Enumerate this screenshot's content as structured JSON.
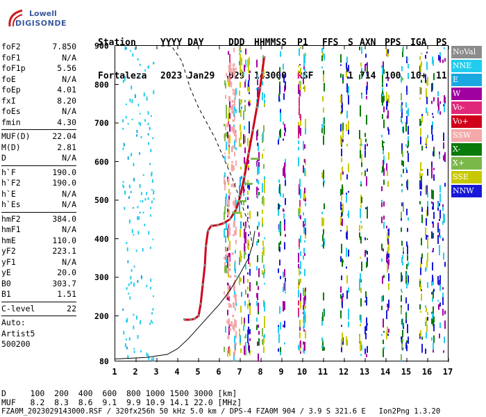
{
  "logo": {
    "line1": "Lowell",
    "line2": "DIGISONDE"
  },
  "header": {
    "row1": [
      "Station",
      "YYYY DAY",
      "DDD",
      "HHMMSS",
      "P1",
      "FFS",
      "S",
      "AXN",
      "PPS",
      "IGA",
      "PS"
    ],
    "row2": [
      "Fortaleza",
      "2023 Jan29",
      "029",
      "143000",
      "RSF",
      "1",
      "714",
      "100",
      "10+",
      "11"
    ]
  },
  "params": {
    "group1": [
      {
        "k": "foF2",
        "v": "7.850"
      },
      {
        "k": "foF1",
        "v": "N/A"
      },
      {
        "k": "foF1p",
        "v": "5.56"
      },
      {
        "k": "foE",
        "v": "N/A"
      },
      {
        "k": "foEp",
        "v": "4.01"
      },
      {
        "k": "fxI",
        "v": "8.20"
      },
      {
        "k": "foEs",
        "v": "N/A"
      },
      {
        "k": "fmin",
        "v": "4.30"
      }
    ],
    "group2": [
      {
        "k": "MUF(D)",
        "v": "22.04"
      },
      {
        "k": "M(D)",
        "v": "2.81"
      },
      {
        "k": "D",
        "v": "N/A"
      }
    ],
    "group3": [
      {
        "k": "h`F",
        "v": "190.0"
      },
      {
        "k": "h`F2",
        "v": "190.0"
      },
      {
        "k": "h`E",
        "v": "N/A"
      },
      {
        "k": "h`Es",
        "v": "N/A"
      }
    ],
    "group4": [
      {
        "k": "hmF2",
        "v": "384.0"
      },
      {
        "k": "hmF1",
        "v": "N/A"
      },
      {
        "k": "hmE",
        "v": "110.0"
      },
      {
        "k": "yF2",
        "v": "223.1"
      },
      {
        "k": "yF1",
        "v": "N/A"
      },
      {
        "k": "yE",
        "v": "20.0"
      },
      {
        "k": "B0",
        "v": "303.7"
      },
      {
        "k": "B1",
        "v": "1.51"
      }
    ],
    "group5": [
      {
        "k": "C-level",
        "v": "22"
      }
    ],
    "auto": [
      "Auto:",
      "Artist5",
      "500200"
    ]
  },
  "axes": {
    "y_ticks": [
      "900",
      "800",
      "700",
      "600",
      "500",
      "400",
      "300",
      "200",
      "80"
    ],
    "x_ticks": [
      "1",
      "2",
      "3",
      "4",
      "5",
      "6",
      "7",
      "8",
      "9",
      "10",
      "11",
      "12",
      "13",
      "14",
      "15",
      "16",
      "17"
    ]
  },
  "legend": [
    {
      "label": "NoVal",
      "color": "#8c8c8c"
    },
    {
      "label": "NNE",
      "color": "#22ccee"
    },
    {
      "label": "E",
      "color": "#1aa8e0"
    },
    {
      "label": "W",
      "color": "#a000a0"
    },
    {
      "label": "Vo-",
      "color": "#e0287a"
    },
    {
      "label": "Vo+",
      "color": "#d0001a"
    },
    {
      "label": "SSW",
      "color": "#f4a8a8"
    },
    {
      "label": "X-",
      "color": "#0a7a0a"
    },
    {
      "label": "X+",
      "color": "#7ab84a"
    },
    {
      "label": "SSE",
      "color": "#c8c800"
    },
    {
      "label": "NNW",
      "color": "#1818d8"
    }
  ],
  "footer": {
    "d_row": "D     100  200  400  600  800 1000 1500 3000 [km]",
    "muf_row": "MUF   8.2  8.3  8.6  9.1  9.9 10.9 14.1 22.0 [MHz]",
    "file_row": "FZA0M_2023029143000.RSF / 320fx256h 50 kHz 5.0 km / DPS-4 FZA0M 904 / 3.9 S 321.6 E   Ion2Png 1.3.20"
  }
}
